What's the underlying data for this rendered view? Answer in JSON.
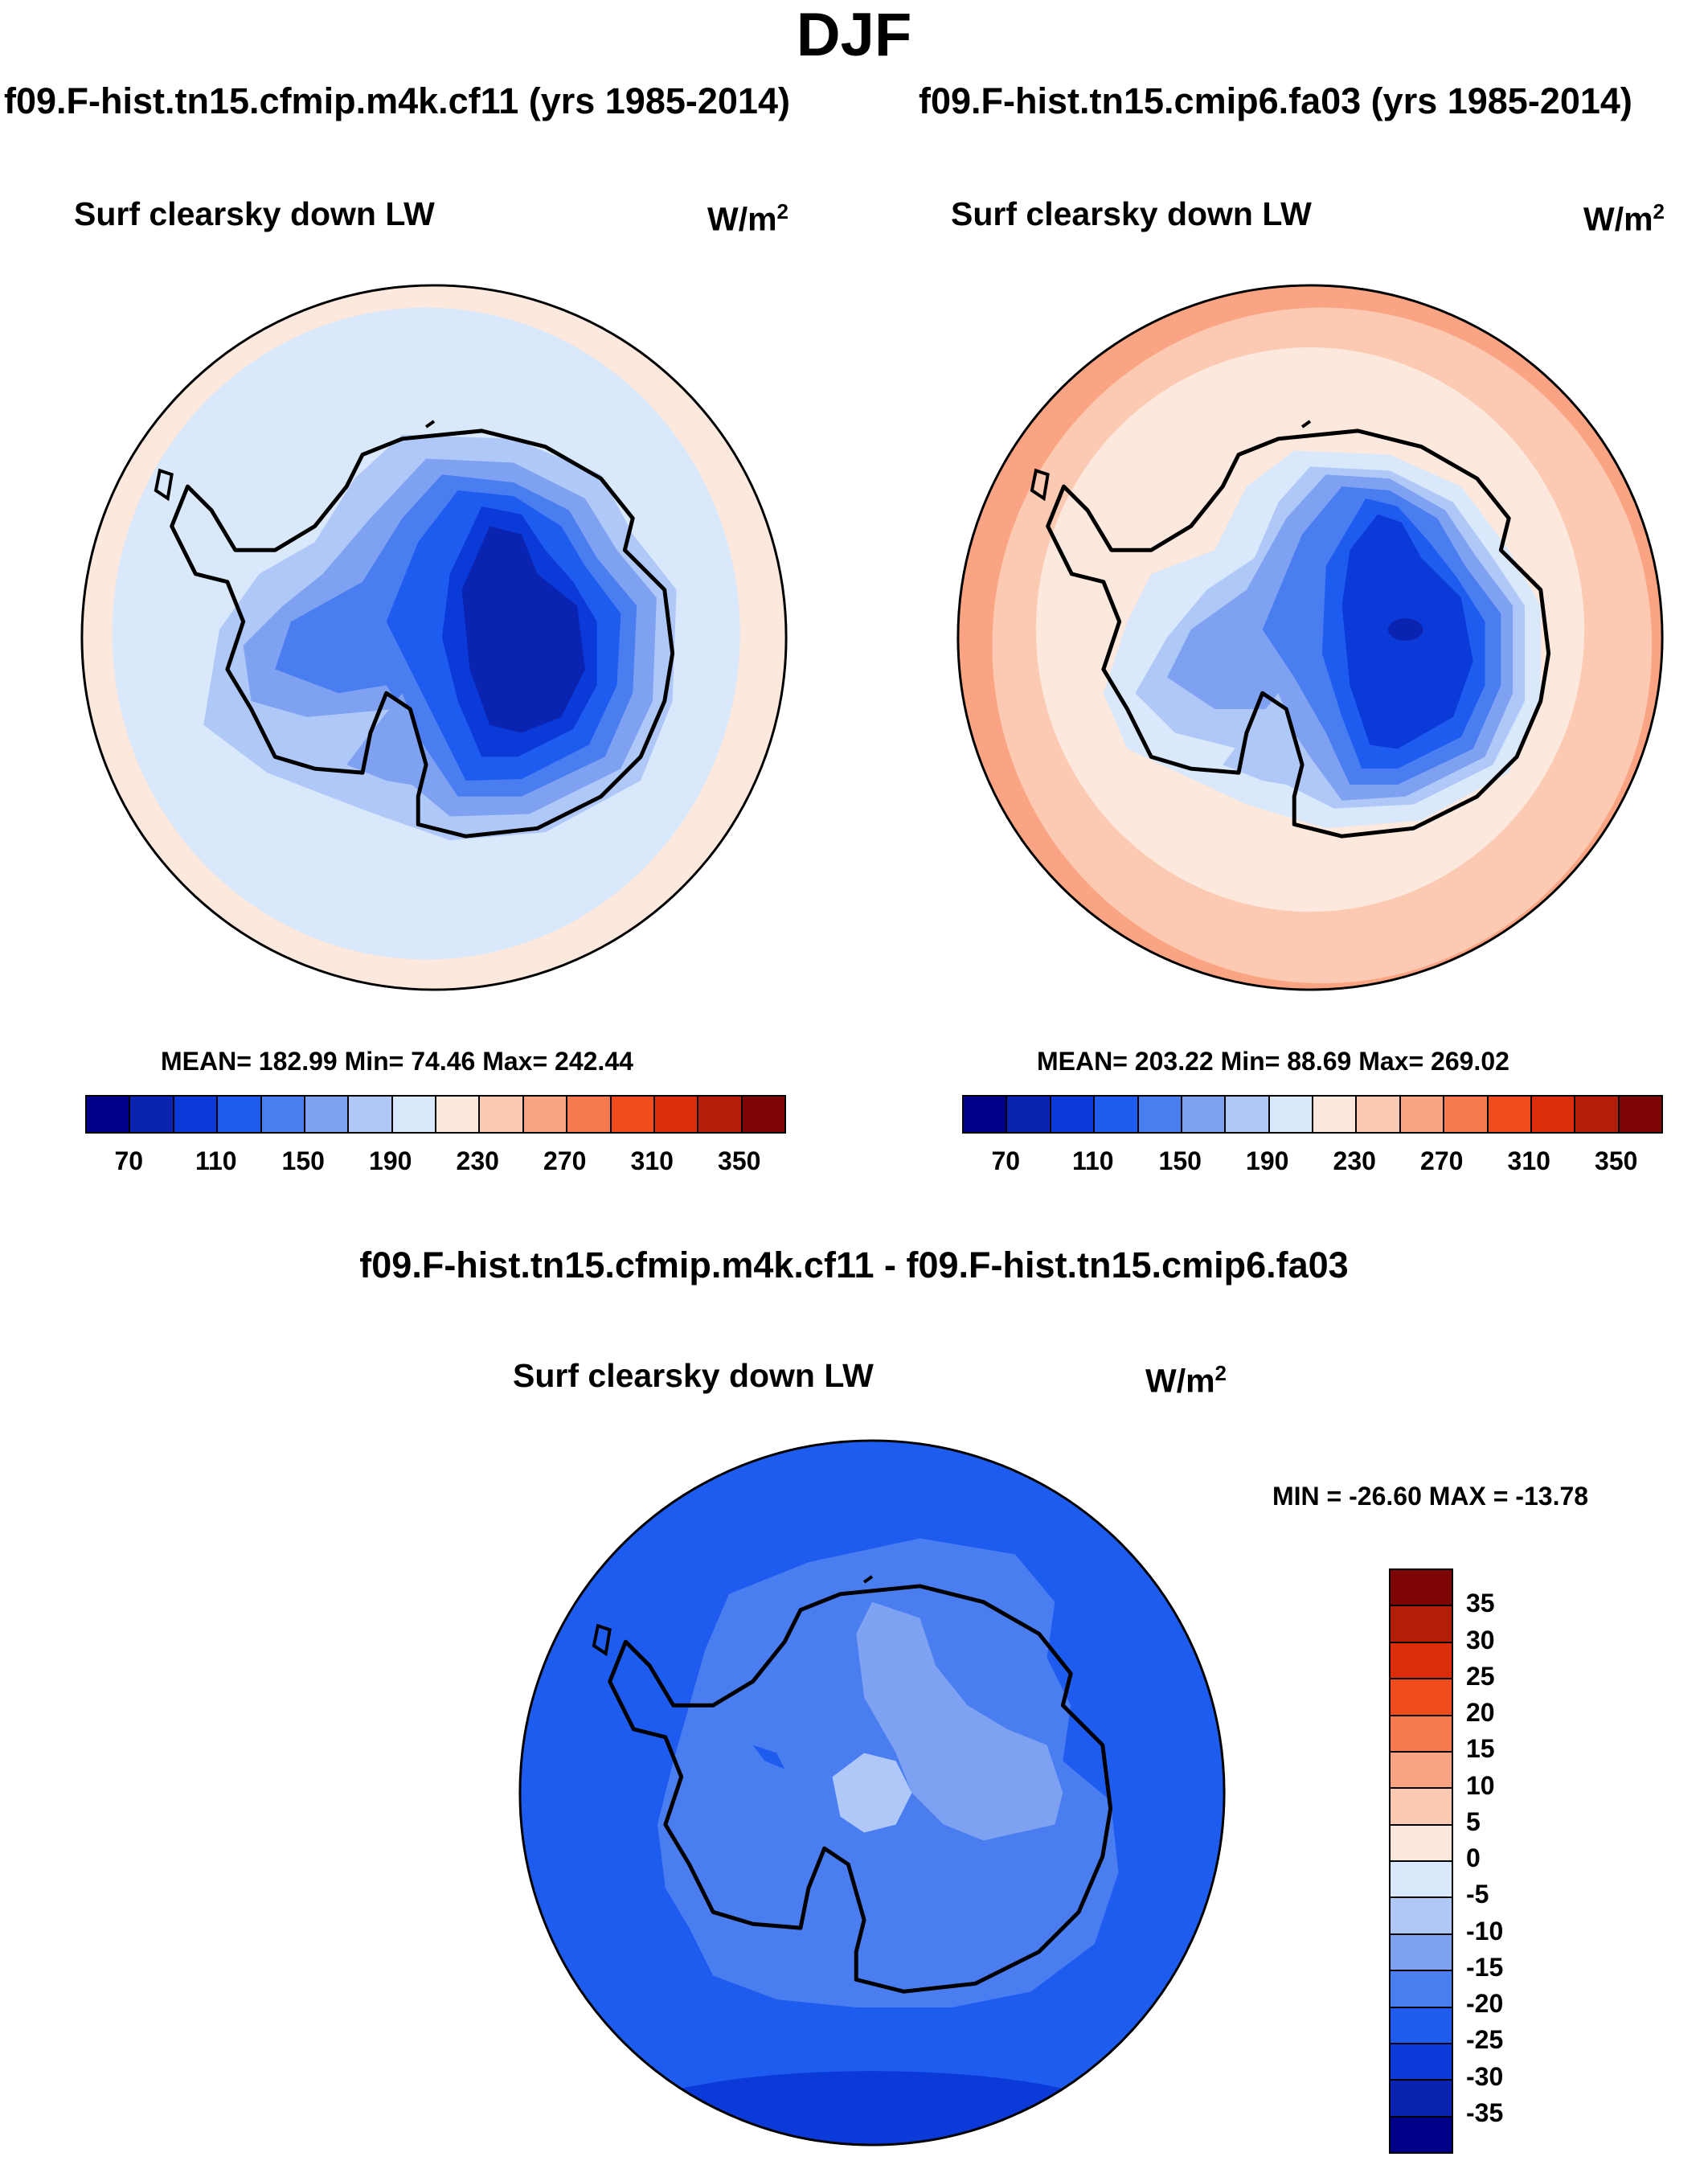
{
  "figure": {
    "title": "DJF",
    "diff_title": "f09.F-hist.tn15.cfmip.m4k.cf11 - f09.F-hist.tn15.cmip6.fa03"
  },
  "panels": {
    "left": {
      "case": "f09.F-hist.tn15.cfmip.m4k.cf11 (yrs 1985-2014)",
      "variable": "Surf clearsky down LW",
      "units_base": "W/m",
      "units_exp": "2",
      "stats": "MEAN= 182.99  Min=  74.46  Max= 242.44"
    },
    "right": {
      "case": "f09.F-hist.tn15.cmip6.fa03 (yrs 1985-2014)",
      "variable": "Surf clearsky down LW",
      "units_base": "W/m",
      "units_exp": "2",
      "stats": "MEAN= 203.22  Min=  88.69  Max= 269.02"
    },
    "diff": {
      "variable": "Surf clearsky down LW",
      "units_base": "W/m",
      "units_exp": "2",
      "stats": "MIN = -26.60 MAX = -13.78"
    }
  },
  "colorbar_main": {
    "colors": [
      "#00008b",
      "#0a23b0",
      "#0c3ad8",
      "#1e5cf0",
      "#4a7df0",
      "#7ea1f2",
      "#afc8f7",
      "#d9e8fa",
      "#fce8dc",
      "#fccab2",
      "#fba483",
      "#f77a4e",
      "#f04c1e",
      "#dc2d0a",
      "#b31e07",
      "#7d0505"
    ],
    "ticks": [
      "70",
      "110",
      "150",
      "190",
      "230",
      "270",
      "310",
      "350"
    ]
  },
  "colorbar_diff": {
    "colors": [
      "#7d0505",
      "#b31e07",
      "#dc2d0a",
      "#f04c1e",
      "#f77a4e",
      "#fba483",
      "#fccab2",
      "#fce8dc",
      "#d9e8fa",
      "#afc8f7",
      "#7ea1f2",
      "#4a7df0",
      "#1e5cf0",
      "#0c3ad8",
      "#0a23b0",
      "#00008b"
    ],
    "ticks": [
      "35",
      "30",
      "25",
      "20",
      "15",
      "10",
      "5",
      "0",
      "-5",
      "-10",
      "-15",
      "-20",
      "-25",
      "-30",
      "-35"
    ]
  }
}
